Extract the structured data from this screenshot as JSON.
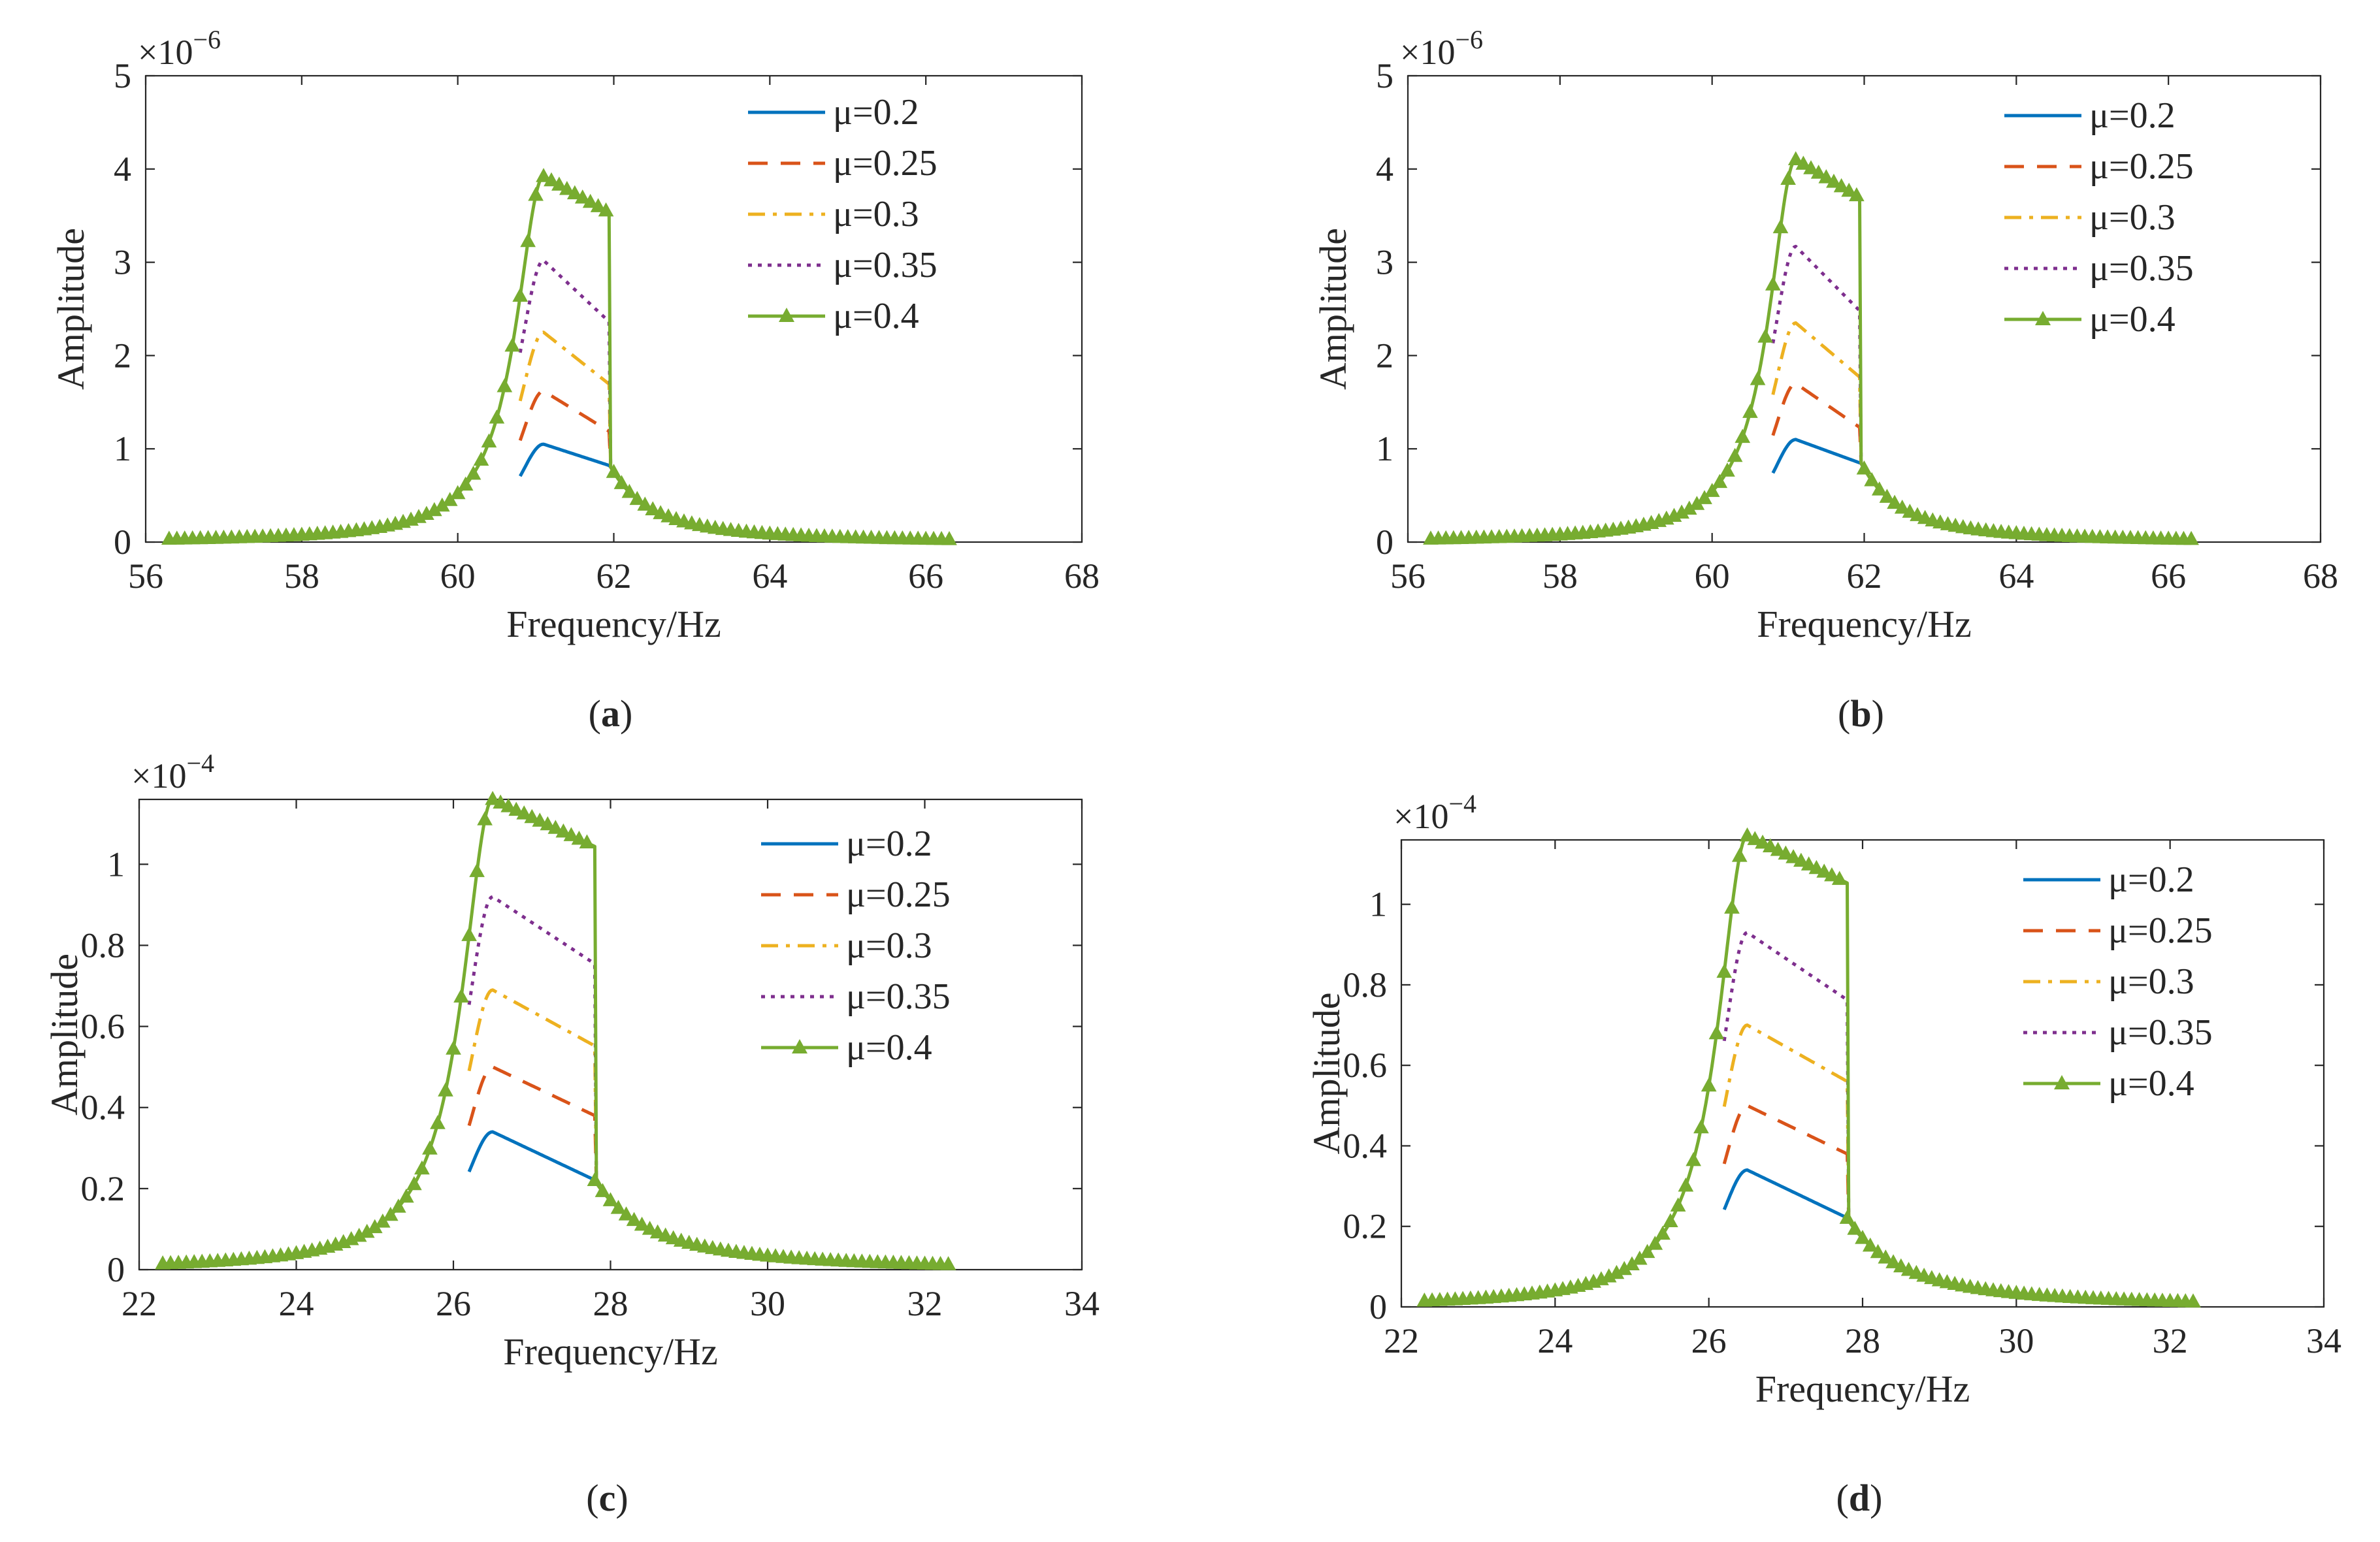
{
  "colors": {
    "mu_0_2": "#0072BD",
    "mu_0_25": "#D95319",
    "mu_0_3": "#EDB120",
    "mu_0_35": "#7E2F8E",
    "mu_0_4": "#77AC30",
    "axis": "#262626"
  },
  "chart_data": [
    {
      "type": "line",
      "panel_label": "(a)",
      "panel_letter": "a",
      "exponent_label": "×10",
      "exponent": "−6",
      "xlabel": "Frequency/Hz",
      "ylabel": "Amplitude",
      "xlim": [
        56,
        68
      ],
      "ylim": [
        0,
        5
      ],
      "xticks": [
        56,
        58,
        60,
        62,
        64,
        66,
        68
      ],
      "yticks": [
        0,
        1,
        2,
        3,
        4,
        5
      ],
      "ytick_labels": [
        "0",
        "1",
        "2",
        "3",
        "4",
        "5"
      ],
      "f0": 61.1,
      "w": 0.43,
      "jump": 61.95,
      "y_jump_base": 0.82,
      "series": [
        {
          "name": "μ=0.2",
          "peak": 1.05,
          "drop": 0.22,
          "color_key": "mu_0_2",
          "style": "solid"
        },
        {
          "name": "μ=0.25",
          "peak": 1.62,
          "drop": 0.27,
          "color_key": "mu_0_25",
          "style": "dashed"
        },
        {
          "name": "μ=0.3",
          "peak": 2.25,
          "drop": 0.25,
          "color_key": "mu_0_3",
          "style": "dashdot"
        },
        {
          "name": "μ=0.35",
          "peak": 3.02,
          "drop": 0.22,
          "color_key": "mu_0_35",
          "style": "dotted"
        },
        {
          "name": "μ=0.4",
          "peak": 3.92,
          "drop": 0.1,
          "color_key": "mu_0_4",
          "style": "solid-marker"
        }
      ],
      "legend": [
        "μ=0.2",
        "μ=0.25",
        "μ=0.3",
        "μ=0.35",
        "μ=0.4"
      ],
      "legend_position": "top-right"
    },
    {
      "type": "line",
      "panel_label": "(b)",
      "panel_letter": "b",
      "exponent_label": "×10",
      "exponent": "−6",
      "xlabel": "Frequency/Hz",
      "ylabel": "Amplitude",
      "xlim": [
        56,
        68
      ],
      "ylim": [
        0,
        5
      ],
      "xticks": [
        56,
        58,
        60,
        62,
        64,
        66,
        68
      ],
      "yticks": [
        0,
        1,
        2,
        3,
        4,
        5
      ],
      "ytick_labels": [
        "0",
        "1",
        "2",
        "3",
        "4",
        "5"
      ],
      "f0": 61.1,
      "w": 0.43,
      "jump": 61.95,
      "y_jump_base": 0.86,
      "series": [
        {
          "name": "μ=0.2",
          "peak": 1.1,
          "drop": 0.23,
          "color_key": "mu_0_2",
          "style": "solid"
        },
        {
          "name": "μ=0.25",
          "peak": 1.7,
          "drop": 0.28,
          "color_key": "mu_0_25",
          "style": "dashed"
        },
        {
          "name": "μ=0.3",
          "peak": 2.35,
          "drop": 0.25,
          "color_key": "mu_0_3",
          "style": "dashdot"
        },
        {
          "name": "μ=0.35",
          "peak": 3.17,
          "drop": 0.22,
          "color_key": "mu_0_35",
          "style": "dotted"
        },
        {
          "name": "μ=0.4",
          "peak": 4.1,
          "drop": 0.1,
          "color_key": "mu_0_4",
          "style": "solid-marker"
        }
      ],
      "legend": [
        "μ=0.2",
        "μ=0.25",
        "μ=0.3",
        "μ=0.35",
        "μ=0.4"
      ],
      "legend_position": "top-right"
    },
    {
      "type": "line",
      "panel_label": "(c)",
      "panel_letter": "c",
      "exponent_label": "×10",
      "exponent": "−4",
      "xlabel": "Frequency/Hz",
      "ylabel": "Amplitude",
      "xlim": [
        22,
        34
      ],
      "ylim": [
        0,
        1.16
      ],
      "xticks": [
        22,
        24,
        26,
        28,
        30,
        32,
        34
      ],
      "yticks": [
        0,
        0.2,
        0.4,
        0.6,
        0.8,
        1
      ],
      "ytick_labels": [
        "0",
        "0.2",
        "0.4",
        "0.6",
        "0.8",
        "1"
      ],
      "f0": 26.5,
      "w": 0.47,
      "jump": 27.8,
      "y_jump_base": 0.22,
      "series": [
        {
          "name": "μ=0.2",
          "peak": 0.34,
          "drop": 0.35,
          "color_key": "mu_0_2",
          "style": "solid"
        },
        {
          "name": "μ=0.25",
          "peak": 0.5,
          "drop": 0.24,
          "color_key": "mu_0_25",
          "style": "dashed"
        },
        {
          "name": "μ=0.3",
          "peak": 0.69,
          "drop": 0.2,
          "color_key": "mu_0_3",
          "style": "dashdot"
        },
        {
          "name": "μ=0.35",
          "peak": 0.92,
          "drop": 0.18,
          "color_key": "mu_0_35",
          "style": "dotted"
        },
        {
          "name": "μ=0.4",
          "peak": 1.16,
          "drop": 0.1,
          "color_key": "mu_0_4",
          "style": "solid-marker"
        }
      ],
      "legend": [
        "μ=0.2",
        "μ=0.25",
        "μ=0.3",
        "μ=0.35",
        "μ=0.4"
      ],
      "legend_position": "top-right"
    },
    {
      "type": "line",
      "panel_label": "(d)",
      "panel_letter": "d",
      "exponent_label": "×10",
      "exponent": "−4",
      "xlabel": "Frequency/Hz",
      "ylabel": "Amplitude",
      "xlim": [
        22,
        34
      ],
      "ylim": [
        0,
        1.16
      ],
      "xticks": [
        22,
        24,
        26,
        28,
        30,
        32,
        34
      ],
      "yticks": [
        0,
        0.2,
        0.4,
        0.6,
        0.8,
        1
      ],
      "ytick_labels": [
        "0",
        "0.2",
        "0.4",
        "0.6",
        "0.8",
        "1"
      ],
      "f0": 26.5,
      "w": 0.47,
      "jump": 27.8,
      "y_jump_base": 0.22,
      "series": [
        {
          "name": "μ=0.2",
          "peak": 0.34,
          "drop": 0.35,
          "color_key": "mu_0_2",
          "style": "solid"
        },
        {
          "name": "μ=0.25",
          "peak": 0.5,
          "drop": 0.24,
          "color_key": "mu_0_25",
          "style": "dashed"
        },
        {
          "name": "μ=0.3",
          "peak": 0.7,
          "drop": 0.2,
          "color_key": "mu_0_3",
          "style": "dashdot"
        },
        {
          "name": "μ=0.35",
          "peak": 0.93,
          "drop": 0.18,
          "color_key": "mu_0_35",
          "style": "dotted"
        },
        {
          "name": "μ=0.4",
          "peak": 1.17,
          "drop": 0.1,
          "color_key": "mu_0_4",
          "style": "solid-marker"
        }
      ],
      "legend": [
        "μ=0.2",
        "μ=0.25",
        "μ=0.3",
        "μ=0.35",
        "μ=0.4"
      ],
      "legend_position": "top-right"
    }
  ]
}
